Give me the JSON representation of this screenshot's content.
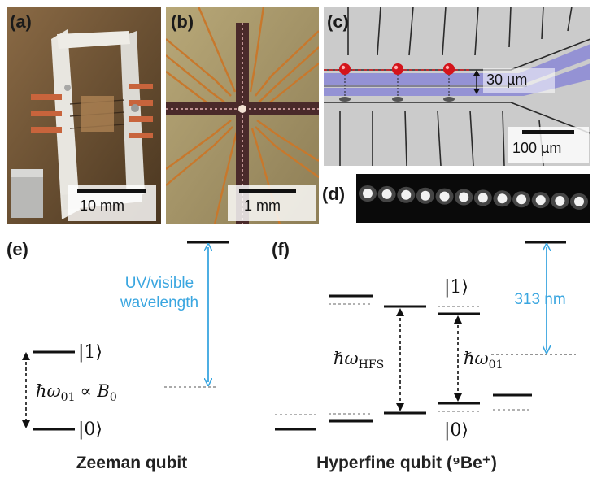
{
  "panels": {
    "a": {
      "label": "(a)",
      "scale": "10 mm"
    },
    "b": {
      "label": "(b)",
      "scale": "1 mm"
    },
    "c": {
      "label": "(c)",
      "scale": "100 µm",
      "spacing": "30 µm"
    },
    "d": {
      "label": "(d)"
    },
    "e": {
      "label": "(e)",
      "title": "Zeeman qubit",
      "ket1": "|1⟩",
      "ket0": "|0⟩",
      "transition_prefix": "ℏω",
      "transition_sub": "01",
      "transition_suffix": "∝ B",
      "transition_suffix_sub": "0",
      "uv_line1": "UV/visible",
      "uv_line2": "wavelength"
    },
    "f": {
      "label": "(f)",
      "title": "Hyperfine qubit (⁹Be⁺)",
      "ket1": "|1⟩",
      "ket0": "|0⟩",
      "hfs_prefix": "ℏω",
      "hfs_sub": "HFS",
      "q_prefix": "ℏω",
      "q_sub": "01",
      "wavelength": "313 nm"
    }
  },
  "colors": {
    "laser_arrow": "#3aa6e0",
    "dashed_reference": "#999999",
    "ion": "#d4141b",
    "electrode_blue": "#8b88d6"
  },
  "ion_image": {
    "ion_count": 12
  }
}
